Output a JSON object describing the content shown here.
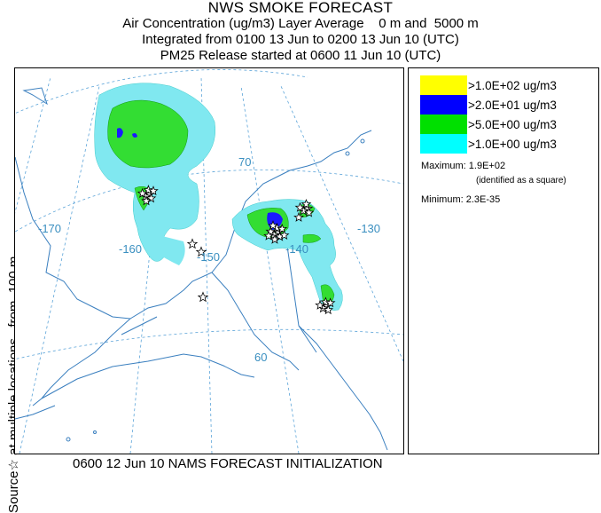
{
  "header": {
    "title": "NWS SMOKE FORECAST",
    "line1": "Air Concentration (ug/m3) Layer Average    0 m and  5000 m",
    "line2": "Integrated from 0100 13 Jun to 0200 13 Jun 10 (UTC)",
    "line3": "PM25 Release started at 0600 11 Jun 10 (UTC)"
  },
  "side_label": "Source☆ at multiple locations   from  100 m",
  "footer": "0600 12 Jun 10 NAMS FORECAST INITIALIZATION",
  "legend": {
    "items": [
      {
        "label": ">1.0E+02 ug/m3",
        "color": "#ffff00"
      },
      {
        "label": ">2.0E+01 ug/m3",
        "color": "#0000ff"
      },
      {
        "label": ">5.0E+00 ug/m3",
        "color": "#00e000"
      },
      {
        "label": ">1.0E+00 ug/m3",
        "color": "#00ffff"
      }
    ],
    "maximum": "Maximum: 1.9E+02",
    "maximum_note": "(identified as a square)",
    "minimum": "Minimum: 2.3E-35"
  },
  "map": {
    "graticule_labels": {
      "lon_170": "-170",
      "lon_160": "-160",
      "lon_150": "-150",
      "lon_140": "-140",
      "lon_130": "-130",
      "lat_70": "70",
      "lat_60": "60"
    },
    "colors": {
      "graticule": "#5aa3d8",
      "coast": "#3a7fbf",
      "plume_light": "#80e8f0",
      "plume_mid": "#33dd33",
      "plume_high": "#1a1aff"
    }
  }
}
